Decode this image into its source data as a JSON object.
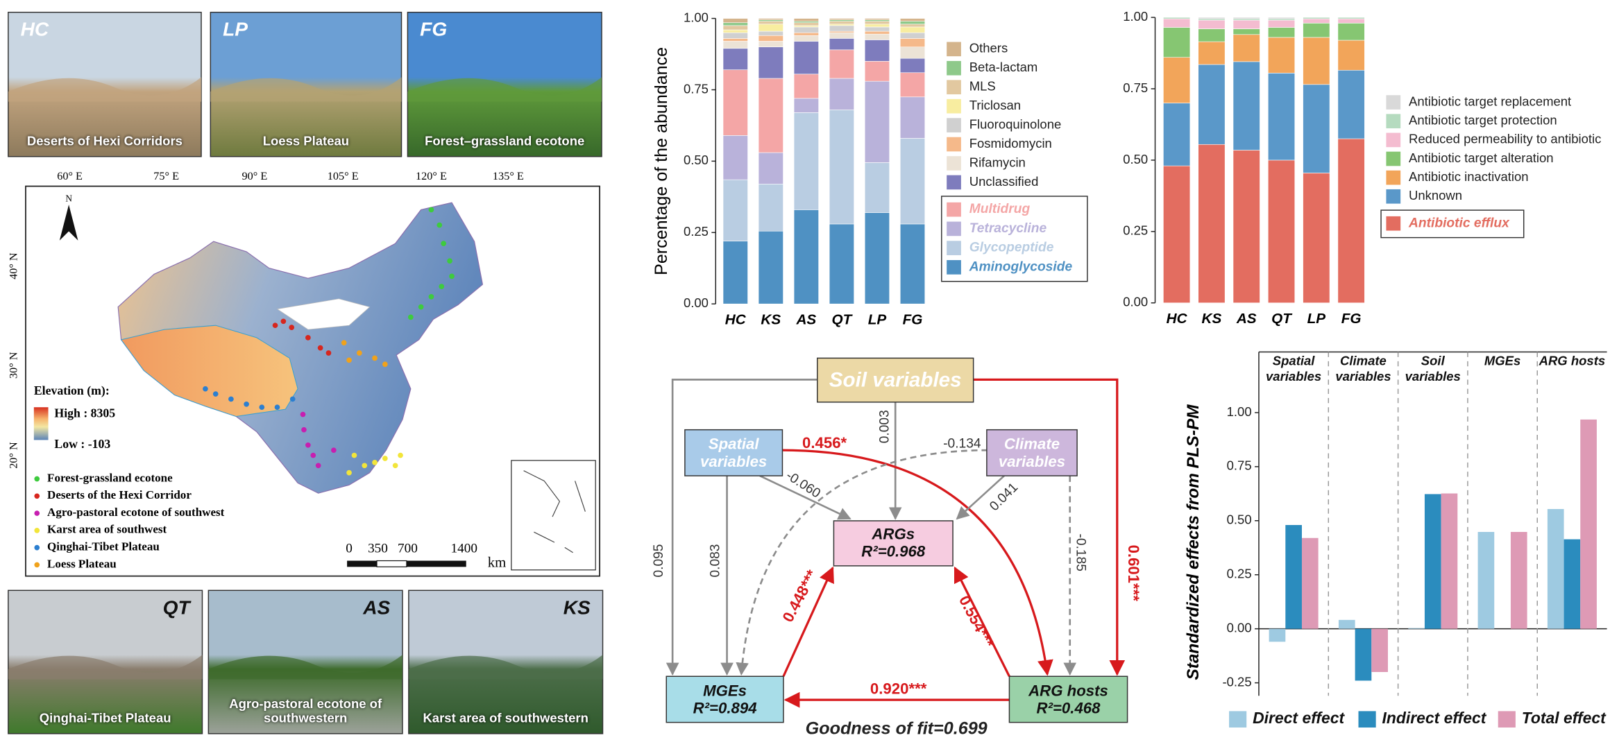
{
  "photos": [
    {
      "code": "HC",
      "caption": "Deserts of Hexi Corridors"
    },
    {
      "code": "LP",
      "caption": "Loess Plateau"
    },
    {
      "code": "FG",
      "caption": "Forest–grassland ecotone"
    },
    {
      "code": "QT",
      "caption": "Qinghai-Tibet Plateau"
    },
    {
      "code": "AS",
      "caption": "Agro-pastoral ecotone of southwestern"
    },
    {
      "code": "KS",
      "caption": "Karst area of southwestern"
    }
  ],
  "map": {
    "north": "N",
    "lon_labels": [
      "60° E",
      "75° E",
      "90° E",
      "105° E",
      "120° E",
      "135° E"
    ],
    "lat_labels": [
      "40° N",
      "30° N",
      "20° N"
    ],
    "elevation_title": "Elevation (m):",
    "elevation_high": "High : 8305",
    "elevation_low": "Low : -103",
    "legend": [
      {
        "label": "Forest-grassland ecotone",
        "color": "#3ecb3e"
      },
      {
        "label": "Deserts of the Hexi Corridor",
        "color": "#d7261e"
      },
      {
        "label": "Agro-pastoral ecotone of southwest",
        "color": "#c71fb0"
      },
      {
        "label": "Karst area of southwest",
        "color": "#f2e53a"
      },
      {
        "label": "Qinghai-Tibet Plateau",
        "color": "#2c7fd0"
      },
      {
        "label": "Loess Plateau",
        "color": "#f0a21c"
      }
    ],
    "scale_labels": [
      "0",
      "350",
      "700",
      "1400"
    ],
    "scale_unit": "km"
  },
  "chart_data": [
    {
      "type": "bar",
      "stacked": true,
      "y_label": "Percentage of the abundance",
      "categories": [
        "HC",
        "KS",
        "AS",
        "QT",
        "LP",
        "FG"
      ],
      "ylim": [
        0,
        1
      ],
      "yticks": [
        {
          "value": 0,
          "label": "0.00"
        },
        {
          "value": 0.25,
          "label": "0.25"
        },
        {
          "value": 0.5,
          "label": "0.50"
        },
        {
          "value": 0.75,
          "label": "0.75"
        },
        {
          "value": 1,
          "label": "1.00"
        }
      ],
      "series": [
        {
          "name": "Aminoglycoside",
          "color": "#4f91c3",
          "emphasis": true,
          "values": [
            0.22,
            0.255,
            0.33,
            0.28,
            0.32,
            0.28
          ]
        },
        {
          "name": "Glycopeptide",
          "color": "#b9cde2",
          "emphasis": true,
          "values": [
            0.215,
            0.165,
            0.34,
            0.4,
            0.175,
            0.3
          ]
        },
        {
          "name": "Tetracycline",
          "color": "#b9b2da",
          "emphasis": true,
          "values": [
            0.155,
            0.11,
            0.05,
            0.11,
            0.285,
            0.145
          ]
        },
        {
          "name": "Multidrug",
          "color": "#f4a6a6",
          "emphasis": true,
          "values": [
            0.23,
            0.26,
            0.085,
            0.1,
            0.07,
            0.085
          ]
        },
        {
          "name": "Unclassified",
          "color": "#7e7cbd",
          "values": [
            0.075,
            0.11,
            0.115,
            0.04,
            0.075,
            0.05
          ]
        },
        {
          "name": "Rifamycin",
          "color": "#ece3d6",
          "values": [
            0.025,
            0.02,
            0.02,
            0.02,
            0.02,
            0.04
          ]
        },
        {
          "name": "Fosmidomycin",
          "color": "#f5b98a",
          "values": [
            0.01,
            0.02,
            0.01,
            0.005,
            0.01,
            0.03
          ]
        },
        {
          "name": "Fluoroquinolone",
          "color": "#d0d0d0",
          "values": [
            0.02,
            0.015,
            0.02,
            0.02,
            0.015,
            0.02
          ]
        },
        {
          "name": "Triclosan",
          "color": "#f8eda0",
          "values": [
            0.01,
            0.025,
            0.005,
            0.005,
            0.01,
            0.02
          ]
        },
        {
          "name": "MLS",
          "color": "#e2c8a0",
          "values": [
            0.015,
            0.01,
            0.01,
            0.01,
            0.01,
            0.01
          ]
        },
        {
          "name": "Beta-lactam",
          "color": "#8ec98a",
          "values": [
            0.01,
            0.005,
            0.005,
            0.005,
            0.005,
            0.01
          ]
        },
        {
          "name": "Others",
          "color": "#d4b48c",
          "values": [
            0.015,
            0.005,
            0.01,
            0.005,
            0.005,
            0.01
          ]
        }
      ]
    },
    {
      "type": "bar",
      "stacked": true,
      "categories": [
        "HC",
        "KS",
        "AS",
        "QT",
        "LP",
        "FG"
      ],
      "ylim": [
        0,
        1
      ],
      "yticks": [
        {
          "value": 0,
          "label": "0.00"
        },
        {
          "value": 0.25,
          "label": "0.25"
        },
        {
          "value": 0.5,
          "label": "0.50"
        },
        {
          "value": 0.75,
          "label": "0.75"
        },
        {
          "value": 1,
          "label": "1.00"
        }
      ],
      "series": [
        {
          "name": "Antibiotic efflux",
          "color": "#e36d60",
          "emphasis": true,
          "values": [
            0.48,
            0.555,
            0.535,
            0.5,
            0.455,
            0.575
          ]
        },
        {
          "name": "Unknown",
          "color": "#5a98c9",
          "values": [
            0.22,
            0.28,
            0.31,
            0.305,
            0.31,
            0.24
          ]
        },
        {
          "name": "Antibiotic inactivation",
          "color": "#f2a55a",
          "values": [
            0.16,
            0.08,
            0.095,
            0.125,
            0.165,
            0.105
          ]
        },
        {
          "name": "Antibiotic target alteration",
          "color": "#86c672",
          "values": [
            0.105,
            0.045,
            0.02,
            0.035,
            0.05,
            0.06
          ]
        },
        {
          "name": "Reduced permeability to antibiotic",
          "color": "#f4bcd0",
          "values": [
            0.03,
            0.03,
            0.03,
            0.025,
            0.015,
            0.015
          ]
        },
        {
          "name": "Antibiotic target protection",
          "color": "#b5dbbf",
          "values": [
            0.005,
            0.005,
            0.005,
            0.005,
            0.005,
            0.005
          ]
        },
        {
          "name": "Antibiotic target replacement",
          "color": "#d9d9d9",
          "values": [
            0,
            0.005,
            0.005,
            0.005,
            0,
            0
          ]
        }
      ]
    },
    {
      "type": "bar",
      "y_label": "Standardized effects from PLS-PM",
      "categories": [
        "Spatial variables",
        "Climate variables",
        "Soil variables",
        "MGEs",
        "ARG hosts"
      ],
      "ylim": [
        -0.31,
        1.11
      ],
      "yticks": [
        {
          "value": -0.25,
          "label": "-0.25"
        },
        {
          "value": 0,
          "label": "0.00"
        },
        {
          "value": 0.25,
          "label": "0.25"
        },
        {
          "value": 0.5,
          "label": "0.50"
        },
        {
          "value": 0.75,
          "label": "0.75"
        },
        {
          "value": 1,
          "label": "1.00"
        }
      ],
      "legend": "bottom",
      "series": [
        {
          "name": "Direct effect",
          "color": "#9ecae1",
          "values": [
            -0.06,
            0.041,
            0.003,
            0.448,
            0.554
          ]
        },
        {
          "name": "Indirect effect",
          "color": "#2b8cbe",
          "values": [
            0.48,
            -0.24,
            0.623,
            0,
            0.414
          ]
        },
        {
          "name": "Total effect",
          "color": "#de9ab5",
          "values": [
            0.42,
            -0.2,
            0.626,
            0.448,
            0.968
          ]
        }
      ]
    }
  ],
  "path_diagram": {
    "nodes": [
      {
        "label": "Soil variables"
      },
      {
        "label": "Spatial variables"
      },
      {
        "label": "Climate variables"
      },
      {
        "label": "ARGs",
        "r2": "R²=0.968"
      },
      {
        "label": "MGEs",
        "r2": "R²=0.894"
      },
      {
        "label": "ARG hosts",
        "r2": "R²=0.468"
      }
    ],
    "edges": [
      {
        "from": 0,
        "to": 4,
        "label": "0.095",
        "color": "#8c8c8c"
      },
      {
        "from": 0,
        "to": 3,
        "label": "0.003",
        "color": "#8c8c8c"
      },
      {
        "from": 0,
        "to": 5,
        "label": "0.601***",
        "color": "#d7191c"
      },
      {
        "from": 1,
        "to": 4,
        "label": "0.083",
        "color": "#8c8c8c"
      },
      {
        "from": 1,
        "to": 3,
        "label": "-0.060",
        "color": "#8c8c8c"
      },
      {
        "from": 1,
        "to": 5,
        "label": "0.456*",
        "color": "#d7191c"
      },
      {
        "from": 2,
        "to": 4,
        "label": "-0.134",
        "color": "#8c8c8c",
        "dashed": true
      },
      {
        "from": 2,
        "to": 3,
        "label": "0.041",
        "color": "#8c8c8c"
      },
      {
        "from": 2,
        "to": 5,
        "label": "-0.185",
        "color": "#8c8c8c",
        "dashed": true
      },
      {
        "from": 4,
        "to": 3,
        "label": "0.448***",
        "color": "#d7191c"
      },
      {
        "from": 5,
        "to": 3,
        "label": "0.554***",
        "color": "#d7191c"
      },
      {
        "from": 5,
        "to": 4,
        "label": "0.920***",
        "color": "#d7191c"
      }
    ],
    "goodness_of_fit": "Goodness of fit=0.699"
  }
}
